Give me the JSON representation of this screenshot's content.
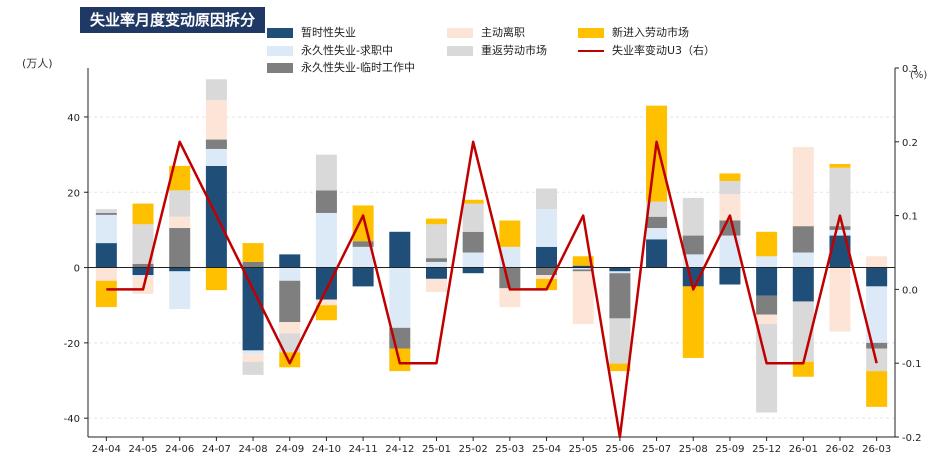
{
  "chart_data": {
    "type": "bar",
    "stacked": true,
    "title": "失业率月度变动原因拆分",
    "ylabel_left": "(万人)",
    "ylabel_right": "(%)",
    "ylim_left": [
      -45,
      53
    ],
    "yticks_left": [
      "40",
      "20",
      "0",
      "-20",
      "-40"
    ],
    "ylim_right": [
      -0.2,
      0.3
    ],
    "yticks_right": [
      "0.3",
      "0.2",
      "0.1",
      "0.0",
      "-0.1",
      "-0.2"
    ],
    "categories": [
      "24-04",
      "24-05",
      "24-06",
      "24-07",
      "24-08",
      "24-09",
      "24-10",
      "24-11",
      "24-12",
      "25-01",
      "25-02",
      "25-03",
      "25-04",
      "25-05",
      "25-06",
      "25-07",
      "25-08",
      "25-09",
      "25-12",
      "26-01",
      "26-02",
      "26-03"
    ],
    "series": [
      {
        "name": "暂时性失业",
        "color": "#1f4e79",
        "values": [
          6.5,
          -2,
          -1,
          27,
          -22,
          3.5,
          -8.5,
          -5,
          9.5,
          -3,
          -1.5,
          0,
          5.5,
          0.5,
          -1,
          7.5,
          -5,
          -4.5,
          -7.5,
          -9,
          8.5,
          -5
        ]
      },
      {
        "name": "永久性失业-求职中",
        "color": "#dce9f7",
        "values": [
          7.5,
          -0.5,
          -10,
          4.5,
          -1,
          -3.5,
          14.5,
          5.5,
          -16,
          1.5,
          4,
          5.5,
          10,
          -0.5,
          -0.5,
          3,
          3.5,
          8.5,
          3,
          4,
          1.5,
          -15
        ]
      },
      {
        "name": "永久性失业-临时工作中",
        "color": "#7f7f7f",
        "values": [
          0.5,
          1,
          10.5,
          2.5,
          1.5,
          -11,
          6,
          1.5,
          -5.5,
          1,
          5.5,
          -5.5,
          -2,
          -0.5,
          -12,
          3,
          5,
          4,
          -5,
          7,
          1,
          -1.5
        ]
      },
      {
        "name": "主动离职",
        "color": "#fce4d6",
        "values": [
          -3.5,
          -4.5,
          3,
          10.5,
          -2,
          -3,
          -1.5,
          0,
          0,
          -3.5,
          0,
          -5,
          -1,
          -14,
          0,
          0,
          0,
          7,
          -2.5,
          21,
          -17,
          3
        ]
      },
      {
        "name": "重返劳动市场",
        "color": "#d9d9d9",
        "values": [
          1,
          10.5,
          7,
          5.5,
          -3.5,
          -5,
          9.5,
          0,
          0,
          9,
          7.5,
          0,
          5.5,
          0,
          -12,
          4,
          10,
          3.5,
          -23.5,
          -16,
          15.5,
          -6
        ]
      },
      {
        "name": "新进入劳动市场",
        "color": "#ffc000",
        "values": [
          -7,
          5.5,
          6.5,
          -6,
          5,
          -4,
          -4,
          9.5,
          -6,
          1.5,
          1,
          7,
          -3,
          2.5,
          -2,
          25.5,
          -19,
          2,
          6.5,
          -4,
          1,
          -9.5
        ]
      }
    ],
    "line": {
      "name": "失业率变动U3（右）",
      "color": "#c00000",
      "values": [
        0,
        0,
        0.2,
        0.1,
        0,
        -0.1,
        0,
        0.1,
        -0.1,
        -0.1,
        0.2,
        0,
        0,
        0.1,
        -0.2,
        0.2,
        0,
        0.1,
        -0.1,
        -0.1,
        0.1,
        -0.1
      ]
    },
    "legend_position": "top"
  }
}
